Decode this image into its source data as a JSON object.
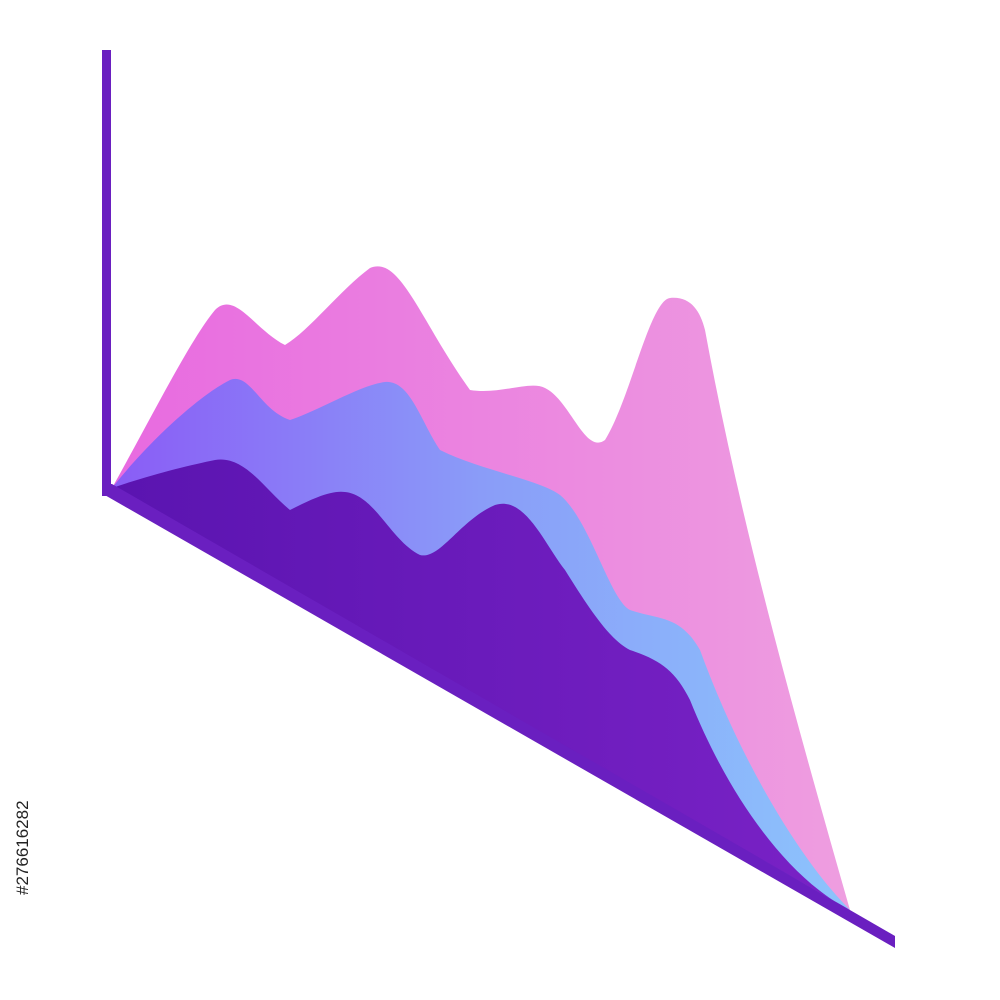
{
  "stock_id": "#276616282"
}
